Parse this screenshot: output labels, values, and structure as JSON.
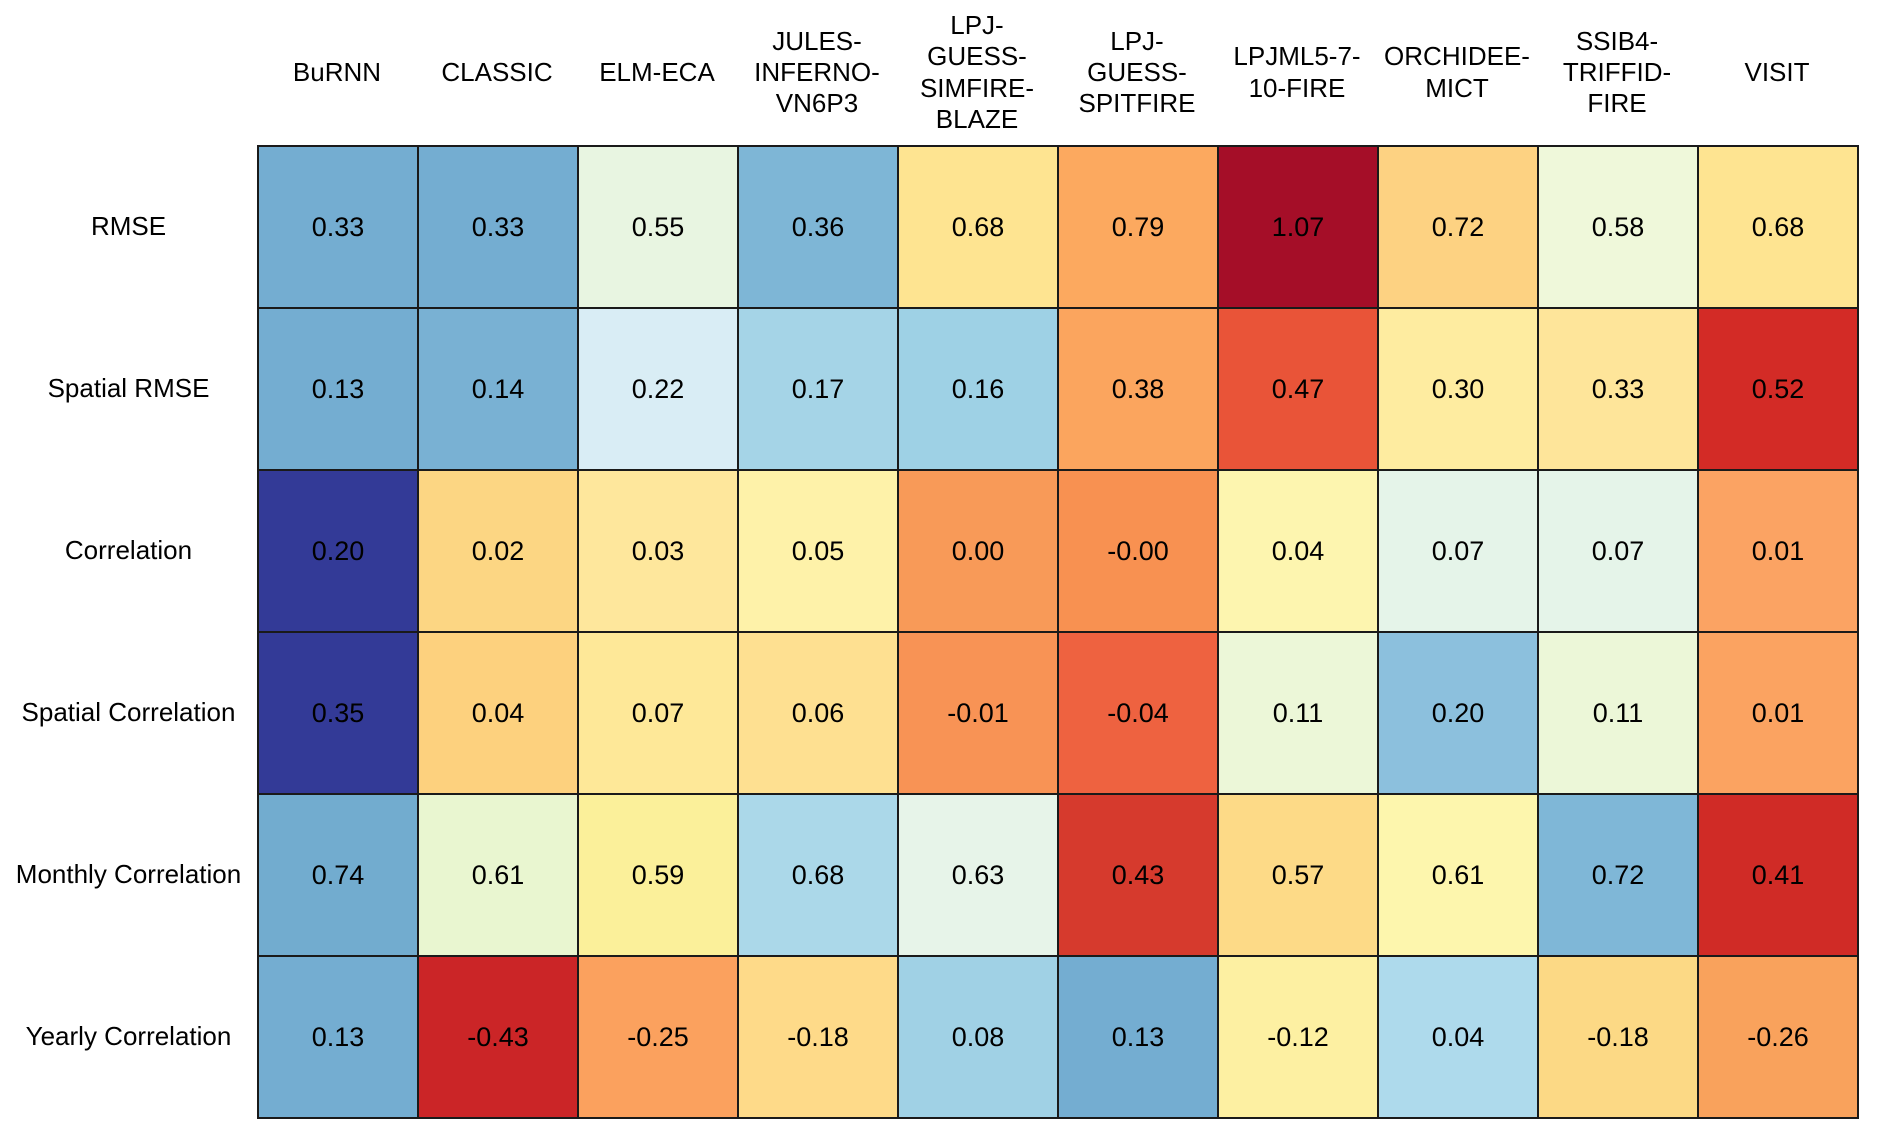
{
  "chart_data": {
    "type": "heatmap",
    "title": "",
    "colormap": "RdYlBu",
    "grid_line_color": "#1a1a1a",
    "text_color": "#000000",
    "background_color": "#ffffff",
    "columns": [
      {
        "name": "BuRNN",
        "display": "BuRNN"
      },
      {
        "name": "CLASSIC",
        "display": "CLASSIC"
      },
      {
        "name": "ELM-ECA",
        "display": "ELM-ECA"
      },
      {
        "name": "JULES-INFERNO-VN6P3",
        "display": "JULES-\nINFERNO-\nVN6P3"
      },
      {
        "name": "LPJ-GUESS-SIMFIRE-BLAZE",
        "display": "LPJ-\nGUESS-\nSIMFIRE-\nBLAZE"
      },
      {
        "name": "LPJ-GUESS-SPITFIRE",
        "display": "LPJ-\nGUESS-\nSPITFIRE"
      },
      {
        "name": "LPJML5-7-10-FIRE",
        "display": "LPJML5-7-\n10-FIRE"
      },
      {
        "name": "ORCHIDEE-MICT",
        "display": "ORCHIDEE-\nMICT"
      },
      {
        "name": "SSIB4-TRIFFID-FIRE",
        "display": "SSIB4-\nTRIFFID-\nFIRE"
      },
      {
        "name": "VISIT",
        "display": "VISIT"
      }
    ],
    "rows": [
      "RMSE",
      "Spatial RMSE",
      "Correlation",
      "Spatial Correlation",
      "Monthly Correlation",
      "Yearly Correlation"
    ],
    "values": [
      [
        "0.33",
        "0.33",
        "0.55",
        "0.36",
        "0.68",
        "0.79",
        "1.07",
        "0.72",
        "0.58",
        "0.68"
      ],
      [
        "0.13",
        "0.14",
        "0.22",
        "0.17",
        "0.16",
        "0.38",
        "0.47",
        "0.30",
        "0.33",
        "0.52"
      ],
      [
        "0.20",
        "0.02",
        "0.03",
        "0.05",
        "0.00",
        "-0.00",
        "0.04",
        "0.07",
        "0.07",
        "0.01"
      ],
      [
        "0.35",
        "0.04",
        "0.07",
        "0.06",
        "-0.01",
        "-0.04",
        "0.11",
        "0.20",
        "0.11",
        "0.01"
      ],
      [
        "0.74",
        "0.61",
        "0.59",
        "0.68",
        "0.63",
        "0.43",
        "0.57",
        "0.61",
        "0.72",
        "0.41"
      ],
      [
        "0.13",
        "-0.43",
        "-0.25",
        "-0.18",
        "0.08",
        "0.13",
        "-0.12",
        "0.04",
        "-0.18",
        "-0.26"
      ]
    ],
    "cell_colors": [
      [
        "#74add1",
        "#74add1",
        "#e8f5e1",
        "#7eb6d6",
        "#fee491",
        "#fca95f",
        "#a50e28",
        "#fdd282",
        "#eff8da",
        "#fee491"
      ],
      [
        "#74add1",
        "#79b1d3",
        "#d9edf5",
        "#a5d4e7",
        "#9ed1e5",
        "#fba55e",
        "#e95438",
        "#feeca0",
        "#fee59a",
        "#d32b26"
      ],
      [
        "#333a97",
        "#fcd683",
        "#fee79c",
        "#fef2a9",
        "#f89a58",
        "#f89151",
        "#fdf5af",
        "#e5f4e9",
        "#e5f4e9",
        "#fba363"
      ],
      [
        "#333a97",
        "#fdd17e",
        "#fee898",
        "#fee091",
        "#f89355",
        "#ee6240",
        "#ecf7d8",
        "#8cc0dd",
        "#ecf7d8",
        "#fba361"
      ],
      [
        "#72accf",
        "#e9f6d0",
        "#fbf09a",
        "#abd8e9",
        "#e7f4e9",
        "#d63a2d",
        "#fdda87",
        "#fdf6ad",
        "#7fb7d7",
        "#d02b26"
      ],
      [
        "#74add1",
        "#cb2527",
        "#fba15e",
        "#feda89",
        "#a0d1e5",
        "#74add1",
        "#fdf0a2",
        "#aedaec",
        "#fcd985",
        "#f9a25c"
      ]
    ]
  }
}
